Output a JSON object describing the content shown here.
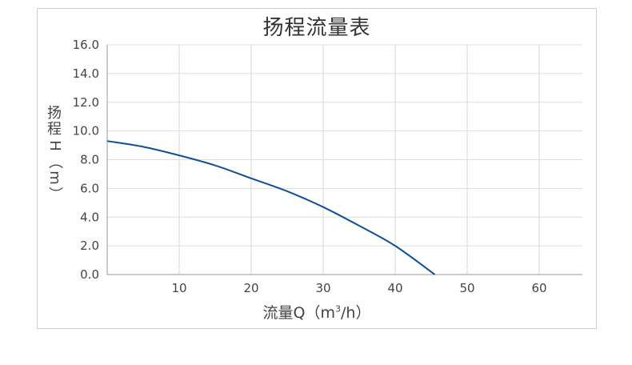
{
  "chart_data": {
    "type": "line",
    "title": "扬程流量表",
    "ylabel": "扬程H（m）",
    "ylabel_parts": [
      "扬",
      "程",
      "H",
      "（",
      "m",
      "）"
    ],
    "xlabel_prefix": "流量Q（m",
    "xlabel_sup": "3",
    "xlabel_suffix": "/h）",
    "xlim": [
      0,
      66
    ],
    "ylim": [
      0,
      16
    ],
    "x_ticks": [
      10,
      20,
      30,
      40,
      50,
      60
    ],
    "y_ticks": [
      0.0,
      2.0,
      4.0,
      6.0,
      8.0,
      10.0,
      12.0,
      14.0,
      16.0
    ],
    "y_tick_labels": [
      "0.0",
      "2.0",
      "4.0",
      "6.0",
      "8.0",
      "10.0",
      "12.0",
      "14.0",
      "16.0"
    ],
    "grid": true,
    "series": [
      {
        "color": "#0e4f96",
        "x": [
          0,
          5,
          10,
          15,
          20,
          25,
          30,
          35,
          40,
          45.5
        ],
        "y": [
          9.3,
          8.9,
          8.3,
          7.6,
          6.7,
          5.8,
          4.7,
          3.4,
          2.0,
          0.0
        ]
      }
    ]
  }
}
